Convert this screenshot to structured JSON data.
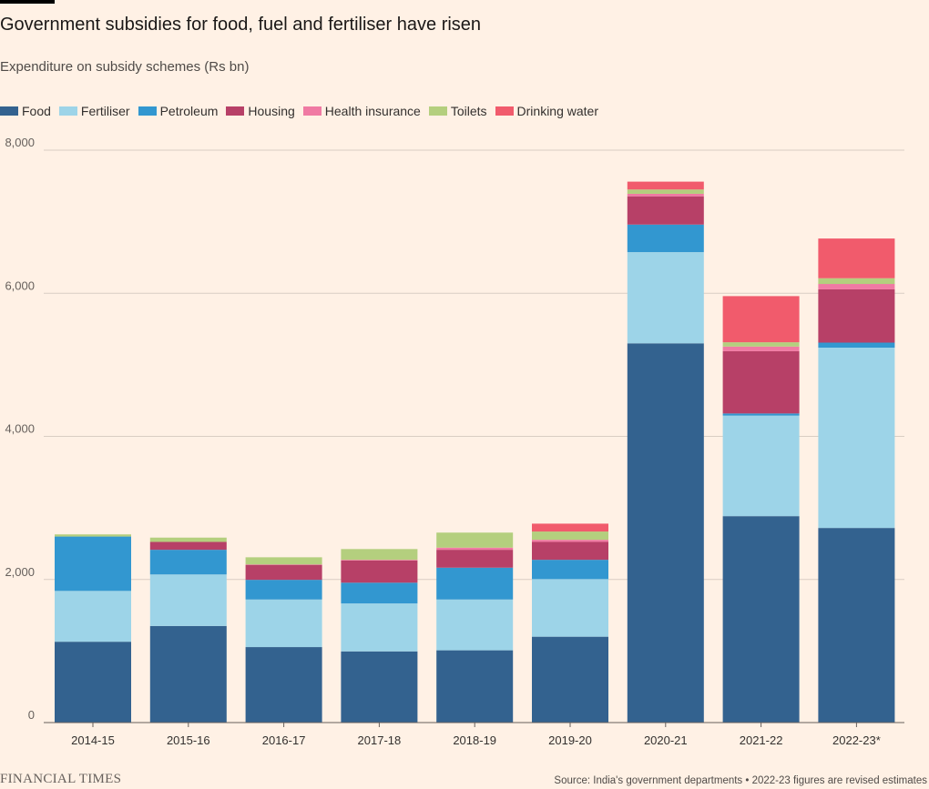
{
  "title": "Government subsidies for food, fuel and fertiliser have risen",
  "subtitle": "Expenditure on subsidy schemes (Rs bn)",
  "brand": "FINANCIAL TIMES",
  "source": "Source: India's government departments • 2022-23 figures are revised estimates",
  "colors": {
    "background": "#fff1e5",
    "gridline": "#d9cdc3",
    "axis": "#66605c"
  },
  "chart_data": {
    "type": "bar",
    "stacked": true,
    "categories": [
      "2014-15",
      "2015-16",
      "2016-17",
      "2017-18",
      "2018-19",
      "2019-20",
      "2020-21",
      "2021-22",
      "2022-23*"
    ],
    "y_ticks": [
      0,
      2000,
      4000,
      6000,
      8000
    ],
    "y_tick_labels": [
      "0",
      "2,000",
      "4,000",
      "6,000",
      "8,000"
    ],
    "ylim": [
      0,
      8000
    ],
    "grid": true,
    "legend_position": "top-left",
    "series": [
      {
        "name": "Food",
        "color": "#33628f",
        "values": [
          1130,
          1350,
          1055,
          995,
          1010,
          1200,
          5300,
          2885,
          2720
        ]
      },
      {
        "name": "Fertiliser",
        "color": "#9dd4e8",
        "values": [
          710,
          720,
          665,
          670,
          710,
          805,
          1275,
          1405,
          2520
        ]
      },
      {
        "name": "Petroleum",
        "color": "#3297d0",
        "values": [
          760,
          345,
          275,
          290,
          445,
          270,
          385,
          30,
          70
        ]
      },
      {
        "name": "Housing",
        "color": "#b74067",
        "values": [
          0,
          110,
          210,
          310,
          250,
          250,
          395,
          870,
          745
        ]
      },
      {
        "name": "Health insurance",
        "color": "#f07aa3",
        "values": [
          0,
          0,
          5,
          10,
          30,
          30,
          35,
          65,
          75
        ]
      },
      {
        "name": "Toilets",
        "color": "#b4cf7e",
        "values": [
          30,
          60,
          100,
          150,
          210,
          115,
          60,
          60,
          80
        ]
      },
      {
        "name": "Drinking water",
        "color": "#f15b6c",
        "values": [
          0,
          0,
          0,
          0,
          0,
          110,
          110,
          645,
          555
        ]
      }
    ]
  }
}
